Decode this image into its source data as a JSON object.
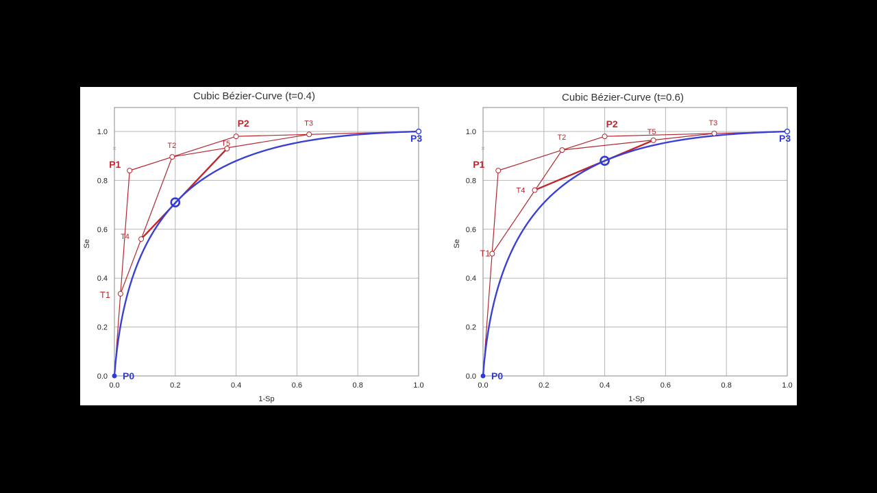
{
  "chart_data": [
    {
      "type": "line",
      "title": "Cubic Bézier-Curve (t=0.4)",
      "xlabel": "1-Sp",
      "ylabel": "Se",
      "xlim": [
        0,
        1
      ],
      "ylim": [
        0,
        1
      ],
      "xticks": [
        "0.0",
        "0.2",
        "0.4",
        "0.6",
        "0.8",
        "1.0"
      ],
      "yticks": [
        "0.0",
        "0.2",
        "0.4",
        "0.6",
        "0.8",
        "1.0"
      ],
      "grid": true,
      "control_points": {
        "P0": [
          0.0,
          0.0
        ],
        "P1": [
          0.05,
          0.84
        ],
        "P2": [
          0.4,
          0.98
        ],
        "P3": [
          1.0,
          1.0
        ]
      },
      "construction_points": {
        "T1": [
          0.02,
          0.336
        ],
        "T2": [
          0.19,
          0.896
        ],
        "T3": [
          0.64,
          0.988
        ],
        "T4": [
          0.088,
          0.56
        ],
        "T5": [
          0.37,
          0.93
        ]
      },
      "curve_point": [
        0.2,
        0.71
      ],
      "label_colors": {
        "control": "#c0262d",
        "curve": "#3a3fd6"
      }
    },
    {
      "type": "line",
      "title": "Cubic Bézier-Curve (t=0.6)",
      "xlabel": "1-Sp",
      "ylabel": "Se",
      "xlim": [
        0,
        1
      ],
      "ylim": [
        0,
        1
      ],
      "xticks": [
        "0.0",
        "0.2",
        "0.4",
        "0.6",
        "0.8",
        "1.0"
      ],
      "yticks": [
        "0.0",
        "0.2",
        "0.4",
        "0.6",
        "0.8",
        "1.0"
      ],
      "grid": true,
      "control_points": {
        "P0": [
          0.0,
          0.0
        ],
        "P1": [
          0.05,
          0.84
        ],
        "P2": [
          0.4,
          0.98
        ],
        "P3": [
          1.0,
          1.0
        ]
      },
      "construction_points": {
        "T1": [
          0.03,
          0.5
        ],
        "T2": [
          0.26,
          0.924
        ],
        "T3": [
          0.76,
          0.992
        ],
        "T4": [
          0.17,
          0.76
        ],
        "T5": [
          0.56,
          0.964
        ]
      },
      "curve_point": [
        0.4,
        0.88
      ],
      "label_colors": {
        "control": "#c0262d",
        "curve": "#3a3fd6"
      }
    }
  ]
}
